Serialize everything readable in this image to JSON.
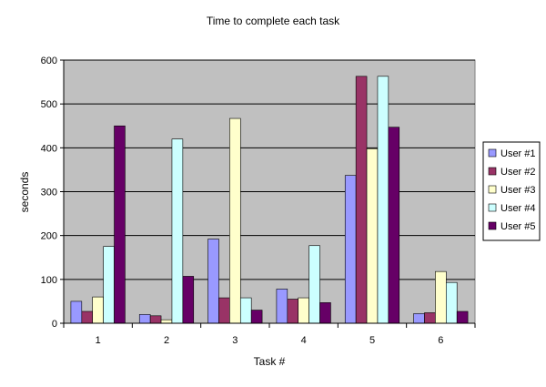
{
  "chart_data": {
    "type": "bar",
    "title": "Time to complete each task",
    "xlabel": "Task #",
    "ylabel": "seconds",
    "categories": [
      "1",
      "2",
      "3",
      "4",
      "5",
      "6"
    ],
    "ylim": [
      0,
      600
    ],
    "yticks": [
      0,
      100,
      200,
      300,
      400,
      500,
      600
    ],
    "grid": true,
    "legend_position": "right",
    "plot_background": "#c0c0c0",
    "series": [
      {
        "name": "User #1",
        "color": "#9999ff",
        "values": [
          50,
          20,
          192,
          78,
          337,
          22
        ]
      },
      {
        "name": "User #2",
        "color": "#993366",
        "values": [
          27,
          17,
          58,
          55,
          563,
          24
        ]
      },
      {
        "name": "User #3",
        "color": "#ffffcc",
        "values": [
          60,
          8,
          467,
          58,
          398,
          118
        ]
      },
      {
        "name": "User #4",
        "color": "#ccffff",
        "values": [
          175,
          420,
          58,
          177,
          563,
          93
        ]
      },
      {
        "name": "User #5",
        "color": "#660066",
        "values": [
          450,
          107,
          30,
          47,
          447,
          27
        ]
      }
    ]
  }
}
